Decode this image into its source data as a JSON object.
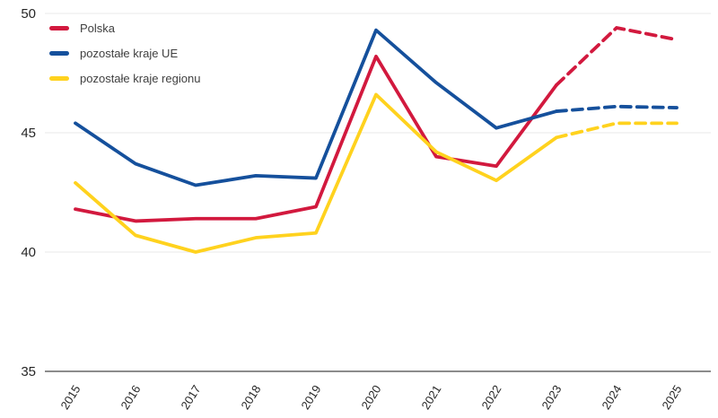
{
  "colors": {
    "polska": "#D2193E",
    "ue": "#15509C",
    "region": "#FFD21E",
    "grid": "#E8E8E8",
    "axis": "#8C8C8C",
    "tick_text": "#262626",
    "legend_text": "#404040"
  },
  "chart_data": {
    "type": "line",
    "title": "",
    "xlabel": "",
    "ylabel": "",
    "x": [
      2015,
      2016,
      2017,
      2018,
      2019,
      2020,
      2021,
      2022,
      2023,
      2024,
      2025
    ],
    "y_ticks": [
      35,
      40,
      45,
      50
    ],
    "ylim": [
      35,
      50
    ],
    "grid": "horizontal",
    "legend_position": "top-left",
    "forecast_style": "dashed-from-2023",
    "series": [
      {
        "name": "Polska",
        "color": "#D2193E",
        "forecast_from": 2023,
        "values": [
          41.8,
          41.3,
          41.4,
          41.4,
          41.9,
          48.2,
          44.0,
          43.6,
          47.0,
          49.4,
          48.9
        ]
      },
      {
        "name": "pozostałe kraje UE",
        "color": "#15509C",
        "forecast_from": 2023,
        "values": [
          45.4,
          43.7,
          42.8,
          43.2,
          43.1,
          49.3,
          47.1,
          45.2,
          45.9,
          46.1,
          46.05
        ]
      },
      {
        "name": "pozostałe kraje regionu",
        "color": "#FFD21E",
        "forecast_from": 2023,
        "values": [
          42.9,
          40.7,
          40.0,
          40.6,
          40.8,
          46.6,
          44.2,
          43.0,
          44.8,
          45.4,
          45.4
        ]
      }
    ]
  }
}
